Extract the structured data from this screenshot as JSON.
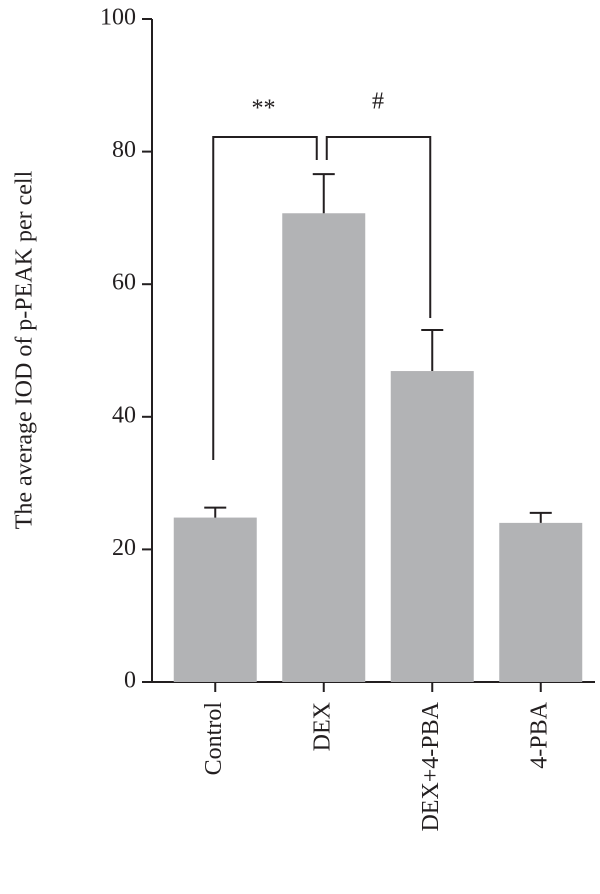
{
  "chart_data": {
    "type": "bar",
    "y_label": "The average IOD of p-PEAK per cell",
    "categories": [
      "Control",
      "DEX",
      "DEX+4-PBA",
      "4-PBA"
    ],
    "values": [
      24.8,
      70.7,
      46.9,
      24.0
    ],
    "errors": [
      1.5,
      5.9,
      6.2,
      1.5
    ],
    "color": "#b2b3b5",
    "ylim": [
      0,
      100
    ],
    "yticks": [
      0,
      20,
      40,
      60,
      80,
      100
    ],
    "annotations": [
      "**",
      "#"
    ]
  }
}
